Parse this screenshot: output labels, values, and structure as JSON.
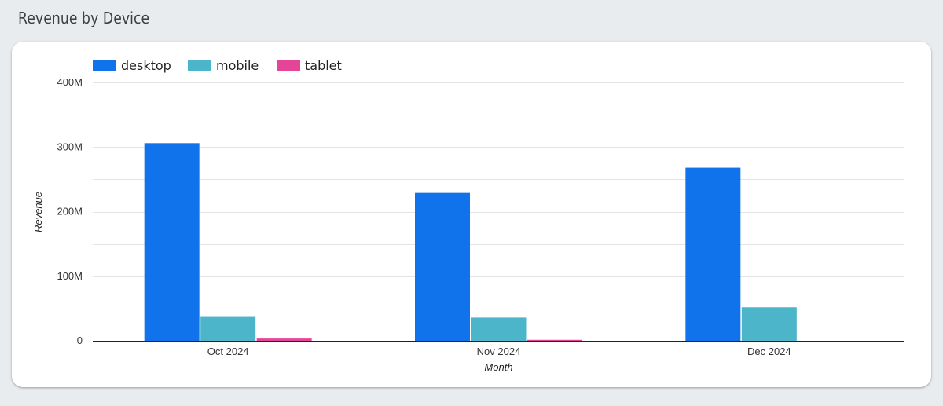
{
  "header": {
    "title": "Revenue by Device"
  },
  "colors": {
    "desktop": "#1173ec",
    "mobile": "#4db5ca",
    "tablet": "#e54596"
  },
  "chart_data": {
    "type": "bar",
    "title": "Revenue by Device",
    "xlabel": "Month",
    "ylabel": "Revenue",
    "categories": [
      "Oct 2024",
      "Nov 2024",
      "Dec 2024"
    ],
    "series": [
      {
        "name": "desktop",
        "values": [
          306000000,
          229000000,
          268000000
        ]
      },
      {
        "name": "mobile",
        "values": [
          37000000,
          36000000,
          52000000
        ]
      },
      {
        "name": "tablet",
        "values": [
          3500000,
          1500000,
          0
        ]
      }
    ],
    "ylim": [
      0,
      400000000
    ],
    "yticks": [
      0,
      100000000,
      200000000,
      300000000,
      400000000
    ],
    "ytick_labels": [
      "0",
      "100M",
      "200M",
      "300M",
      "400M"
    ],
    "grid": true,
    "legend_position": "top-left"
  }
}
